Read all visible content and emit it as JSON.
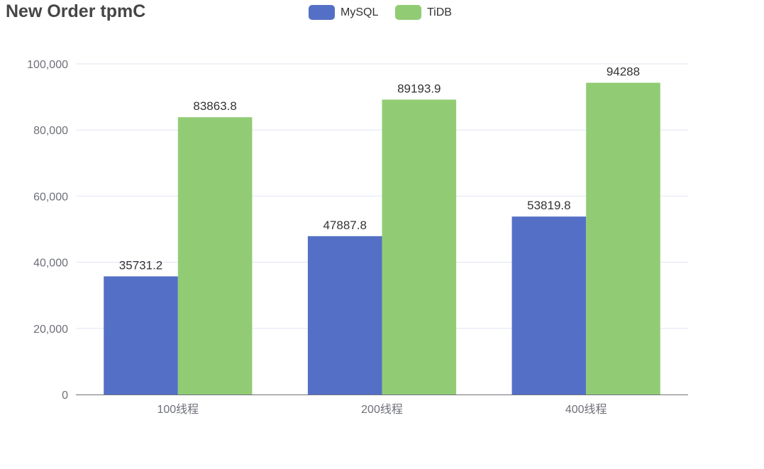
{
  "chart_data": {
    "type": "bar",
    "title": "New Order tpmC",
    "categories": [
      "100线程",
      "200线程",
      "400线程"
    ],
    "series": [
      {
        "name": "MySQL",
        "color": "#5470c6",
        "values": [
          35731.2,
          47887.8,
          53819.8
        ],
        "labels": [
          "35731.2",
          "47887.8",
          "53819.8"
        ]
      },
      {
        "name": "TiDB",
        "color": "#91cc75",
        "values": [
          83863.8,
          89193.9,
          94288
        ],
        "labels": [
          "83863.8",
          "89193.9",
          "94288"
        ]
      }
    ],
    "yticks": [
      0,
      20000,
      40000,
      60000,
      80000,
      100000
    ],
    "ytick_labels": [
      "0",
      "20,000",
      "40,000",
      "60,000",
      "80,000",
      "100,000"
    ],
    "ylim": [
      0,
      100000
    ],
    "xlabel": "",
    "ylabel": "",
    "grid": true,
    "legend_position": "top-center"
  }
}
